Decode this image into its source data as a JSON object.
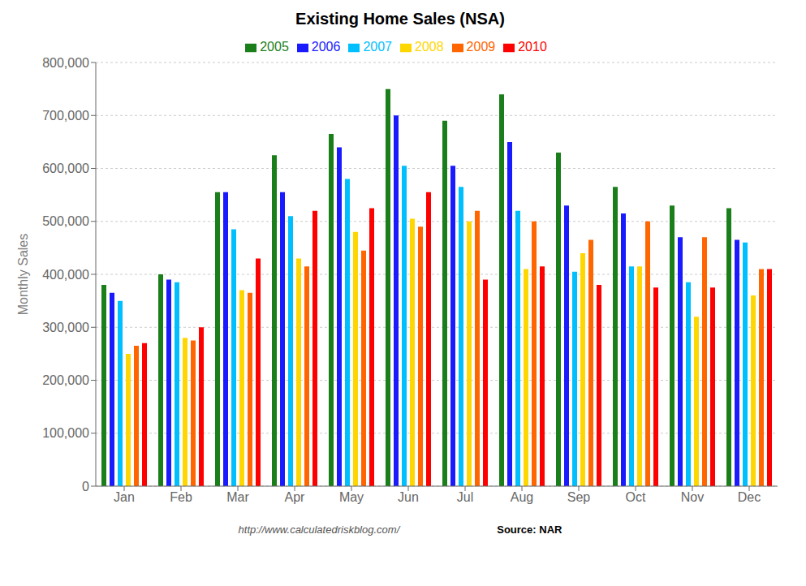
{
  "chart_data": {
    "type": "bar",
    "title": "Existing Home Sales (NSA)",
    "ylabel": "Monthly Sales",
    "categories": [
      "Jan",
      "Feb",
      "Mar",
      "Apr",
      "May",
      "Jun",
      "Jul",
      "Aug",
      "Sep",
      "Oct",
      "Nov",
      "Dec"
    ],
    "series": [
      {
        "name": "2005",
        "color": "#1a7f1a",
        "values": [
          380000,
          400000,
          555000,
          625000,
          665000,
          750000,
          690000,
          740000,
          630000,
          565000,
          530000,
          525000
        ]
      },
      {
        "name": "2006",
        "color": "#1a1aff",
        "values": [
          365000,
          390000,
          555000,
          555000,
          640000,
          700000,
          605000,
          650000,
          530000,
          515000,
          470000,
          465000
        ]
      },
      {
        "name": "2007",
        "color": "#00bfff",
        "values": [
          350000,
          385000,
          485000,
          510000,
          580000,
          605000,
          565000,
          520000,
          405000,
          415000,
          385000,
          460000
        ]
      },
      {
        "name": "2008",
        "color": "#ffd700",
        "values": [
          250000,
          280000,
          370000,
          430000,
          480000,
          505000,
          500000,
          410000,
          440000,
          415000,
          320000,
          360000
        ]
      },
      {
        "name": "2009",
        "color": "#ff6600",
        "values": [
          265000,
          275000,
          365000,
          415000,
          445000,
          490000,
          520000,
          500000,
          465000,
          500000,
          470000,
          410000
        ]
      },
      {
        "name": "2010",
        "color": "#ff0000",
        "values": [
          270000,
          300000,
          430000,
          520000,
          525000,
          555000,
          390000,
          415000,
          380000,
          375000,
          375000,
          410000
        ]
      }
    ],
    "ylim": [
      0,
      800000
    ],
    "yticks": [
      0,
      {
        "value": 100000,
        "label": "100,000"
      },
      {
        "value": 200000,
        "label": "200,000"
      },
      {
        "value": 300000,
        "label": "300,000"
      },
      {
        "value": 400000,
        "label": "400,000"
      },
      {
        "value": 500000,
        "label": "500,000"
      },
      {
        "value": 600000,
        "label": "600,000"
      },
      {
        "value": 700000,
        "label": "700,000"
      },
      {
        "value": 800000,
        "label": "800,000"
      }
    ],
    "grid": true,
    "legend": "top",
    "annotations": [
      "http://www.calculatedriskblog.com/",
      "Source: NAR"
    ]
  }
}
